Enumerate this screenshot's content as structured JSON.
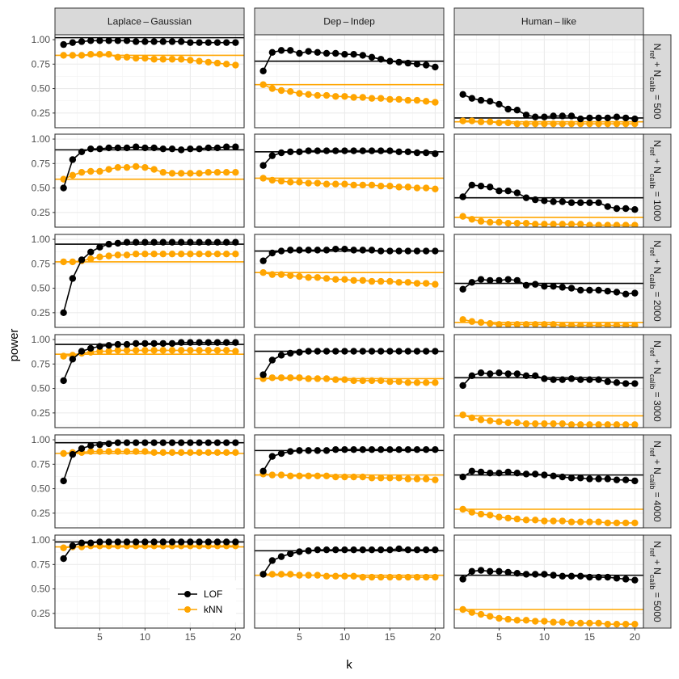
{
  "chart_data": {
    "type": "line",
    "xlabel": "k",
    "ylabel": "power",
    "columns": [
      "Laplace – Gaussian",
      "Dep – Indep",
      "Human – like"
    ],
    "rows": [
      "N_ref + N_calib = 500",
      "N_ref + N_calib = 1000",
      "N_ref + N_calib = 2000",
      "N_ref + N_calib = 3000",
      "N_ref + N_calib = 4000",
      "N_ref + N_calib = 5000"
    ],
    "row_values": [
      "500",
      "1000",
      "2000",
      "3000",
      "4000",
      "5000"
    ],
    "x": [
      1,
      2,
      3,
      4,
      5,
      6,
      7,
      8,
      9,
      10,
      11,
      12,
      13,
      14,
      15,
      16,
      17,
      18,
      19,
      20
    ],
    "x_ticks": [
      "5",
      "10",
      "15",
      "20"
    ],
    "y_ticks": [
      "0.25",
      "0.50",
      "0.75",
      "1.00"
    ],
    "xlim": [
      0.05,
      20.95
    ],
    "ylim": [
      0.1,
      1.05
    ],
    "grid": true,
    "legend": {
      "position": "bottom-left (inside first column, last row)",
      "entries": [
        "LOF",
        "kNN"
      ]
    },
    "colors": {
      "LOF": "#000000",
      "kNN": "#FFA500",
      "panel_border": "#333333",
      "grid": "#ebebeb",
      "strip_fill": "#d9d9d9"
    },
    "panels": [
      {
        "row": 0,
        "col": 0,
        "LOF": [
          0.95,
          0.97,
          0.98,
          0.99,
          0.99,
          0.99,
          0.99,
          0.99,
          0.98,
          0.98,
          0.98,
          0.98,
          0.98,
          0.98,
          0.97,
          0.97,
          0.97,
          0.97,
          0.97,
          0.97
        ],
        "kNN": [
          0.84,
          0.84,
          0.84,
          0.85,
          0.85,
          0.85,
          0.82,
          0.82,
          0.81,
          0.81,
          0.8,
          0.8,
          0.8,
          0.8,
          0.79,
          0.78,
          0.77,
          0.76,
          0.75,
          0.74
        ],
        "LOF_ref": 1.02,
        "kNN_ref": 0.84
      },
      {
        "row": 0,
        "col": 1,
        "LOF": [
          0.68,
          0.87,
          0.89,
          0.89,
          0.86,
          0.88,
          0.87,
          0.86,
          0.86,
          0.85,
          0.85,
          0.84,
          0.82,
          0.8,
          0.78,
          0.77,
          0.76,
          0.75,
          0.74,
          0.72
        ],
        "kNN": [
          0.54,
          0.5,
          0.48,
          0.47,
          0.45,
          0.44,
          0.43,
          0.43,
          0.42,
          0.42,
          0.41,
          0.41,
          0.4,
          0.4,
          0.39,
          0.39,
          0.38,
          0.38,
          0.37,
          0.36
        ],
        "LOF_ref": 0.78,
        "kNN_ref": 0.54
      },
      {
        "row": 0,
        "col": 2,
        "LOF": [
          0.44,
          0.4,
          0.38,
          0.37,
          0.34,
          0.29,
          0.28,
          0.23,
          0.21,
          0.21,
          0.22,
          0.22,
          0.22,
          0.19,
          0.2,
          0.2,
          0.2,
          0.21,
          0.2,
          0.19
        ],
        "kNN": [
          0.17,
          0.17,
          0.16,
          0.16,
          0.15,
          0.15,
          0.14,
          0.14,
          0.14,
          0.14,
          0.14,
          0.14,
          0.14,
          0.14,
          0.14,
          0.14,
          0.14,
          0.14,
          0.14,
          0.14
        ],
        "LOF_ref": 0.2,
        "kNN_ref": 0.16
      },
      {
        "row": 1,
        "col": 0,
        "LOF": [
          0.5,
          0.79,
          0.87,
          0.9,
          0.9,
          0.91,
          0.91,
          0.91,
          0.92,
          0.91,
          0.91,
          0.9,
          0.9,
          0.89,
          0.9,
          0.9,
          0.91,
          0.91,
          0.92,
          0.92
        ],
        "kNN": [
          0.59,
          0.63,
          0.66,
          0.67,
          0.67,
          0.69,
          0.71,
          0.71,
          0.72,
          0.71,
          0.69,
          0.66,
          0.65,
          0.65,
          0.65,
          0.65,
          0.66,
          0.66,
          0.66,
          0.66
        ],
        "LOF_ref": 0.89,
        "kNN_ref": 0.59
      },
      {
        "row": 1,
        "col": 1,
        "LOF": [
          0.73,
          0.83,
          0.86,
          0.87,
          0.87,
          0.88,
          0.88,
          0.88,
          0.88,
          0.88,
          0.88,
          0.88,
          0.88,
          0.88,
          0.88,
          0.87,
          0.87,
          0.86,
          0.86,
          0.85
        ],
        "kNN": [
          0.6,
          0.58,
          0.57,
          0.56,
          0.56,
          0.55,
          0.55,
          0.54,
          0.54,
          0.54,
          0.53,
          0.53,
          0.53,
          0.52,
          0.52,
          0.51,
          0.51,
          0.5,
          0.5,
          0.49
        ],
        "LOF_ref": 0.87,
        "kNN_ref": 0.6
      },
      {
        "row": 1,
        "col": 2,
        "LOF": [
          0.41,
          0.53,
          0.52,
          0.51,
          0.47,
          0.47,
          0.45,
          0.4,
          0.38,
          0.37,
          0.36,
          0.36,
          0.35,
          0.35,
          0.35,
          0.35,
          0.31,
          0.29,
          0.29,
          0.28
        ],
        "kNN": [
          0.21,
          0.18,
          0.16,
          0.15,
          0.15,
          0.14,
          0.14,
          0.14,
          0.13,
          0.13,
          0.13,
          0.13,
          0.13,
          0.13,
          0.12,
          0.12,
          0.12,
          0.12,
          0.12,
          0.12
        ],
        "LOF_ref": 0.4,
        "kNN_ref": 0.2
      },
      {
        "row": 2,
        "col": 0,
        "LOF": [
          0.25,
          0.6,
          0.79,
          0.87,
          0.92,
          0.95,
          0.96,
          0.97,
          0.97,
          0.97,
          0.97,
          0.97,
          0.97,
          0.97,
          0.97,
          0.97,
          0.97,
          0.97,
          0.97,
          0.97
        ],
        "kNN": [
          0.77,
          0.77,
          0.78,
          0.8,
          0.82,
          0.83,
          0.84,
          0.84,
          0.85,
          0.85,
          0.85,
          0.85,
          0.85,
          0.85,
          0.85,
          0.85,
          0.85,
          0.85,
          0.85,
          0.85
        ],
        "LOF_ref": 0.95,
        "kNN_ref": 0.77
      },
      {
        "row": 2,
        "col": 1,
        "LOF": [
          0.78,
          0.86,
          0.88,
          0.89,
          0.89,
          0.89,
          0.89,
          0.89,
          0.9,
          0.9,
          0.89,
          0.89,
          0.89,
          0.88,
          0.88,
          0.88,
          0.88,
          0.88,
          0.88,
          0.88
        ],
        "kNN": [
          0.66,
          0.64,
          0.64,
          0.63,
          0.62,
          0.61,
          0.61,
          0.6,
          0.59,
          0.59,
          0.58,
          0.58,
          0.57,
          0.57,
          0.57,
          0.56,
          0.56,
          0.55,
          0.55,
          0.54
        ],
        "LOF_ref": 0.88,
        "kNN_ref": 0.66
      },
      {
        "row": 2,
        "col": 2,
        "LOF": [
          0.49,
          0.56,
          0.59,
          0.58,
          0.58,
          0.59,
          0.58,
          0.53,
          0.54,
          0.52,
          0.52,
          0.51,
          0.5,
          0.48,
          0.48,
          0.48,
          0.47,
          0.46,
          0.44,
          0.45
        ],
        "kNN": [
          0.18,
          0.16,
          0.15,
          0.14,
          0.13,
          0.13,
          0.13,
          0.13,
          0.13,
          0.13,
          0.13,
          0.12,
          0.12,
          0.12,
          0.12,
          0.12,
          0.12,
          0.12,
          0.12,
          0.12
        ],
        "LOF_ref": 0.55,
        "kNN_ref": 0.15
      },
      {
        "row": 3,
        "col": 0,
        "LOF": [
          0.58,
          0.8,
          0.88,
          0.91,
          0.93,
          0.94,
          0.95,
          0.95,
          0.96,
          0.96,
          0.96,
          0.96,
          0.96,
          0.97,
          0.97,
          0.97,
          0.97,
          0.97,
          0.97,
          0.97
        ],
        "kNN": [
          0.83,
          0.84,
          0.86,
          0.87,
          0.88,
          0.88,
          0.89,
          0.89,
          0.89,
          0.89,
          0.89,
          0.89,
          0.89,
          0.89,
          0.89,
          0.89,
          0.89,
          0.89,
          0.89,
          0.88
        ],
        "LOF_ref": 0.95,
        "kNN_ref": 0.85
      },
      {
        "row": 3,
        "col": 1,
        "LOF": [
          0.64,
          0.79,
          0.84,
          0.86,
          0.87,
          0.88,
          0.88,
          0.88,
          0.88,
          0.88,
          0.88,
          0.88,
          0.88,
          0.88,
          0.88,
          0.88,
          0.88,
          0.88,
          0.88,
          0.88
        ],
        "kNN": [
          0.6,
          0.61,
          0.61,
          0.61,
          0.61,
          0.6,
          0.6,
          0.6,
          0.59,
          0.59,
          0.58,
          0.58,
          0.58,
          0.58,
          0.57,
          0.57,
          0.56,
          0.56,
          0.56,
          0.56
        ],
        "LOF_ref": 0.88,
        "kNN_ref": 0.6
      },
      {
        "row": 3,
        "col": 2,
        "LOF": [
          0.53,
          0.63,
          0.66,
          0.65,
          0.66,
          0.65,
          0.65,
          0.63,
          0.63,
          0.6,
          0.59,
          0.59,
          0.6,
          0.59,
          0.59,
          0.59,
          0.57,
          0.56,
          0.55,
          0.55
        ],
        "kNN": [
          0.23,
          0.2,
          0.18,
          0.17,
          0.16,
          0.15,
          0.15,
          0.14,
          0.14,
          0.14,
          0.14,
          0.14,
          0.13,
          0.13,
          0.13,
          0.13,
          0.13,
          0.13,
          0.13,
          0.13
        ],
        "LOF_ref": 0.61,
        "kNN_ref": 0.22
      },
      {
        "row": 4,
        "col": 0,
        "LOF": [
          0.58,
          0.85,
          0.91,
          0.94,
          0.95,
          0.96,
          0.97,
          0.97,
          0.97,
          0.97,
          0.97,
          0.97,
          0.97,
          0.97,
          0.97,
          0.97,
          0.97,
          0.97,
          0.97,
          0.97
        ],
        "kNN": [
          0.86,
          0.87,
          0.87,
          0.88,
          0.88,
          0.88,
          0.88,
          0.88,
          0.88,
          0.88,
          0.87,
          0.87,
          0.87,
          0.87,
          0.87,
          0.87,
          0.87,
          0.87,
          0.87,
          0.87
        ],
        "LOF_ref": 0.97,
        "kNN_ref": 0.86
      },
      {
        "row": 4,
        "col": 1,
        "LOF": [
          0.68,
          0.83,
          0.86,
          0.88,
          0.89,
          0.89,
          0.89,
          0.89,
          0.9,
          0.9,
          0.9,
          0.9,
          0.9,
          0.9,
          0.9,
          0.9,
          0.9,
          0.9,
          0.9,
          0.9
        ],
        "kNN": [
          0.65,
          0.64,
          0.64,
          0.63,
          0.63,
          0.63,
          0.63,
          0.63,
          0.62,
          0.62,
          0.62,
          0.62,
          0.61,
          0.61,
          0.61,
          0.61,
          0.6,
          0.6,
          0.6,
          0.59
        ],
        "LOF_ref": 0.89,
        "kNN_ref": 0.64
      },
      {
        "row": 4,
        "col": 2,
        "LOF": [
          0.62,
          0.68,
          0.67,
          0.66,
          0.66,
          0.67,
          0.66,
          0.65,
          0.65,
          0.64,
          0.63,
          0.62,
          0.61,
          0.61,
          0.6,
          0.6,
          0.6,
          0.59,
          0.59,
          0.58
        ],
        "kNN": [
          0.29,
          0.26,
          0.24,
          0.23,
          0.21,
          0.2,
          0.19,
          0.18,
          0.18,
          0.17,
          0.17,
          0.17,
          0.16,
          0.16,
          0.16,
          0.16,
          0.15,
          0.15,
          0.15,
          0.15
        ],
        "LOF_ref": 0.64,
        "kNN_ref": 0.29
      },
      {
        "row": 5,
        "col": 0,
        "LOF": [
          0.81,
          0.94,
          0.97,
          0.97,
          0.98,
          0.98,
          0.98,
          0.98,
          0.98,
          0.98,
          0.98,
          0.98,
          0.98,
          0.98,
          0.98,
          0.98,
          0.98,
          0.98,
          0.98,
          0.98
        ],
        "kNN": [
          0.92,
          0.93,
          0.93,
          0.94,
          0.94,
          0.94,
          0.94,
          0.94,
          0.94,
          0.94,
          0.94,
          0.94,
          0.94,
          0.94,
          0.94,
          0.94,
          0.94,
          0.94,
          0.94,
          0.94
        ],
        "LOF_ref": 0.98,
        "kNN_ref": 0.93
      },
      {
        "row": 5,
        "col": 1,
        "LOF": [
          0.65,
          0.79,
          0.83,
          0.86,
          0.88,
          0.89,
          0.9,
          0.9,
          0.9,
          0.9,
          0.9,
          0.9,
          0.9,
          0.9,
          0.9,
          0.91,
          0.9,
          0.9,
          0.9,
          0.9
        ],
        "kNN": [
          0.65,
          0.65,
          0.65,
          0.65,
          0.64,
          0.64,
          0.64,
          0.63,
          0.63,
          0.63,
          0.63,
          0.62,
          0.62,
          0.62,
          0.62,
          0.62,
          0.62,
          0.62,
          0.62,
          0.62
        ],
        "LOF_ref": 0.89,
        "kNN_ref": 0.64
      },
      {
        "row": 5,
        "col": 2,
        "LOF": [
          0.6,
          0.68,
          0.69,
          0.68,
          0.68,
          0.67,
          0.66,
          0.65,
          0.65,
          0.65,
          0.64,
          0.63,
          0.63,
          0.63,
          0.62,
          0.62,
          0.62,
          0.61,
          0.6,
          0.59
        ],
        "kNN": [
          0.29,
          0.26,
          0.24,
          0.22,
          0.2,
          0.19,
          0.18,
          0.18,
          0.17,
          0.17,
          0.16,
          0.16,
          0.15,
          0.15,
          0.15,
          0.15,
          0.14,
          0.14,
          0.14,
          0.14
        ],
        "LOF_ref": 0.64,
        "kNN_ref": 0.29
      }
    ]
  }
}
